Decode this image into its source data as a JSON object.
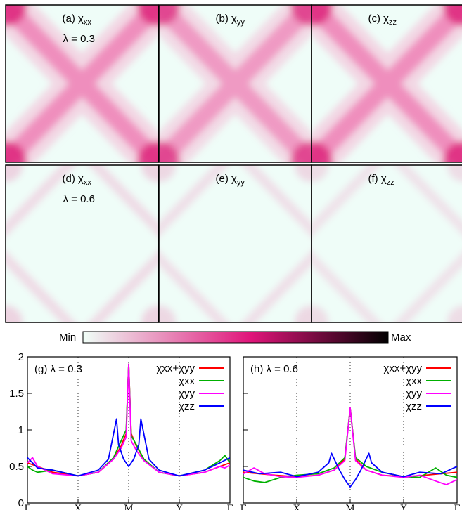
{
  "colorbar": {
    "min_label": "Min",
    "max_label": "Max",
    "colors": [
      "#f0fff8",
      "#e0157a",
      "#000000"
    ]
  },
  "maps": [
    {
      "label": "(a) χ",
      "sub": "xx",
      "lambda_text": "λ = 0.3",
      "intensity": 1.0,
      "pattern": "x"
    },
    {
      "label": "(b) χ",
      "sub": "yy",
      "lambda_text": "",
      "intensity": 0.9,
      "pattern": "x"
    },
    {
      "label": "(c) χ",
      "sub": "zz",
      "lambda_text": "",
      "intensity": 1.0,
      "pattern": "x"
    },
    {
      "label": "(d) χ",
      "sub": "xx",
      "lambda_text": "λ = 0.6",
      "intensity": 0.45,
      "pattern": "diamond"
    },
    {
      "label": "(e) χ",
      "sub": "yy",
      "lambda_text": "",
      "intensity": 0.4,
      "pattern": "diamond"
    },
    {
      "label": "(f)  χ",
      "sub": "zz",
      "lambda_text": "",
      "intensity": 0.35,
      "pattern": "diamond"
    }
  ],
  "chart_data": [
    {
      "type": "line",
      "title": "(g) λ = 0.3",
      "x_ticks": [
        "Γ",
        "X",
        "M",
        "Y",
        "Γ"
      ],
      "xlim": [
        0,
        4
      ],
      "ylim": [
        0,
        2
      ],
      "y_ticks": [
        "0",
        "0.5",
        "1",
        "1.5",
        "2"
      ],
      "y_tick_values": [
        0,
        0.5,
        1,
        1.5,
        2
      ],
      "legend": "top-right",
      "series": [
        {
          "name": "χxx+χyy",
          "color": "#ff0000",
          "x": [
            0,
            0.2,
            0.5,
            1.0,
            1.4,
            1.7,
            1.85,
            1.95,
            2.0,
            2.05,
            2.15,
            2.3,
            2.6,
            3.0,
            3.5,
            3.8,
            4.0
          ],
          "y": [
            0.55,
            0.5,
            0.42,
            0.37,
            0.42,
            0.6,
            0.78,
            0.95,
            1.9,
            0.95,
            0.78,
            0.6,
            0.42,
            0.37,
            0.42,
            0.5,
            0.55
          ]
        },
        {
          "name": "χxx",
          "color": "#00b000",
          "x": [
            0,
            0.1,
            0.2,
            0.5,
            1.0,
            1.4,
            1.7,
            1.85,
            1.95,
            2.0,
            2.05,
            2.15,
            2.3,
            2.6,
            3.0,
            3.5,
            3.8,
            3.9,
            4.0
          ],
          "y": [
            0.5,
            0.45,
            0.42,
            0.45,
            0.37,
            0.42,
            0.62,
            0.85,
            1.0,
            1.9,
            0.92,
            0.8,
            0.6,
            0.42,
            0.37,
            0.45,
            0.58,
            0.65,
            0.55
          ]
        },
        {
          "name": "χyy",
          "color": "#ff00ff",
          "x": [
            0,
            0.1,
            0.2,
            0.5,
            1.0,
            1.4,
            1.7,
            1.85,
            1.95,
            2.0,
            2.05,
            2.15,
            2.3,
            2.6,
            3.0,
            3.5,
            3.8,
            3.9,
            4.0
          ],
          "y": [
            0.55,
            0.62,
            0.5,
            0.4,
            0.37,
            0.42,
            0.6,
            0.75,
            0.9,
            1.9,
            0.85,
            0.72,
            0.58,
            0.42,
            0.37,
            0.42,
            0.5,
            0.48,
            0.52
          ]
        },
        {
          "name": "χzz",
          "color": "#0000ff",
          "x": [
            0,
            0.2,
            0.5,
            1.0,
            1.4,
            1.6,
            1.76,
            1.8,
            1.9,
            2.0,
            2.1,
            2.2,
            2.24,
            2.4,
            2.6,
            3.0,
            3.5,
            3.8,
            4.0
          ],
          "y": [
            0.62,
            0.48,
            0.45,
            0.37,
            0.45,
            0.6,
            1.15,
            0.8,
            0.6,
            0.5,
            0.6,
            0.8,
            1.15,
            0.6,
            0.45,
            0.37,
            0.45,
            0.55,
            0.62
          ]
        }
      ]
    },
    {
      "type": "line",
      "title": "(h) λ = 0.6",
      "x_ticks": [
        "Γ",
        "X",
        "M",
        "Y",
        "Γ"
      ],
      "xlim": [
        0,
        4
      ],
      "ylim": [
        0,
        2
      ],
      "legend": "top-right",
      "series": [
        {
          "name": "χxx+χyy",
          "color": "#ff0000",
          "x": [
            0,
            0.3,
            0.6,
            1.0,
            1.4,
            1.7,
            1.9,
            2.0,
            2.1,
            2.3,
            2.6,
            3.0,
            3.4,
            3.7,
            4.0
          ],
          "y": [
            0.42,
            0.4,
            0.38,
            0.36,
            0.38,
            0.45,
            0.6,
            1.3,
            0.6,
            0.45,
            0.38,
            0.36,
            0.38,
            0.4,
            0.42
          ]
        },
        {
          "name": "χxx",
          "color": "#00b000",
          "x": [
            0,
            0.2,
            0.4,
            0.7,
            1.0,
            1.4,
            1.7,
            1.9,
            2.0,
            2.1,
            2.3,
            2.6,
            3.0,
            3.3,
            3.6,
            3.8,
            4.0
          ],
          "y": [
            0.35,
            0.3,
            0.28,
            0.35,
            0.38,
            0.4,
            0.48,
            0.62,
            1.3,
            0.62,
            0.5,
            0.42,
            0.36,
            0.35,
            0.48,
            0.38,
            0.35
          ]
        },
        {
          "name": "χyy",
          "color": "#ff00ff",
          "x": [
            0,
            0.2,
            0.4,
            0.7,
            1.0,
            1.4,
            1.7,
            1.9,
            2.0,
            2.1,
            2.3,
            2.6,
            3.0,
            3.3,
            3.6,
            3.8,
            4.0
          ],
          "y": [
            0.4,
            0.48,
            0.4,
            0.36,
            0.35,
            0.38,
            0.45,
            0.58,
            1.3,
            0.58,
            0.45,
            0.38,
            0.35,
            0.38,
            0.3,
            0.25,
            0.32
          ]
        },
        {
          "name": "χzz",
          "color": "#0000ff",
          "x": [
            0,
            0.3,
            0.7,
            1.0,
            1.4,
            1.6,
            1.65,
            1.8,
            1.9,
            2.0,
            2.1,
            2.2,
            2.35,
            2.4,
            2.6,
            3.0,
            3.3,
            3.7,
            4.0
          ],
          "y": [
            0.45,
            0.4,
            0.42,
            0.36,
            0.42,
            0.55,
            0.68,
            0.45,
            0.32,
            0.22,
            0.32,
            0.45,
            0.68,
            0.55,
            0.42,
            0.36,
            0.42,
            0.4,
            0.5
          ]
        }
      ]
    }
  ]
}
